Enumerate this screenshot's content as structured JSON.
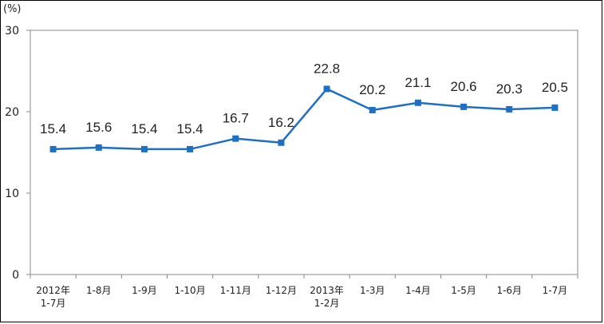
{
  "chart_data": {
    "type": "line",
    "unit_label": "(%)",
    "categories": [
      [
        "2012年",
        "1-7月"
      ],
      [
        "1-8月"
      ],
      [
        "1-9月"
      ],
      [
        "1-10月"
      ],
      [
        "1-11月"
      ],
      [
        "1-12月"
      ],
      [
        "2013年",
        "1-2月"
      ],
      [
        "1-3月"
      ],
      [
        "1-4月"
      ],
      [
        "1-5月"
      ],
      [
        "1-6月"
      ],
      [
        "1-7月"
      ]
    ],
    "series": [
      {
        "values": [
          15.4,
          15.6,
          15.4,
          15.4,
          16.7,
          16.2,
          22.8,
          20.2,
          21.1,
          20.6,
          20.3,
          20.5
        ]
      }
    ],
    "data_labels": [
      "15.4",
      "15.6",
      "15.4",
      "15.4",
      "16.7",
      "16.2",
      "22.8",
      "20.2",
      "21.1",
      "20.6",
      "20.3",
      "20.5"
    ],
    "yticks": [
      "0",
      "10",
      "20",
      "30"
    ],
    "ylim": [
      0,
      30
    ],
    "grid": false,
    "colors": {
      "line": "#1f6fc5",
      "marker": "#1f6fc5",
      "axis": "#888888"
    }
  }
}
